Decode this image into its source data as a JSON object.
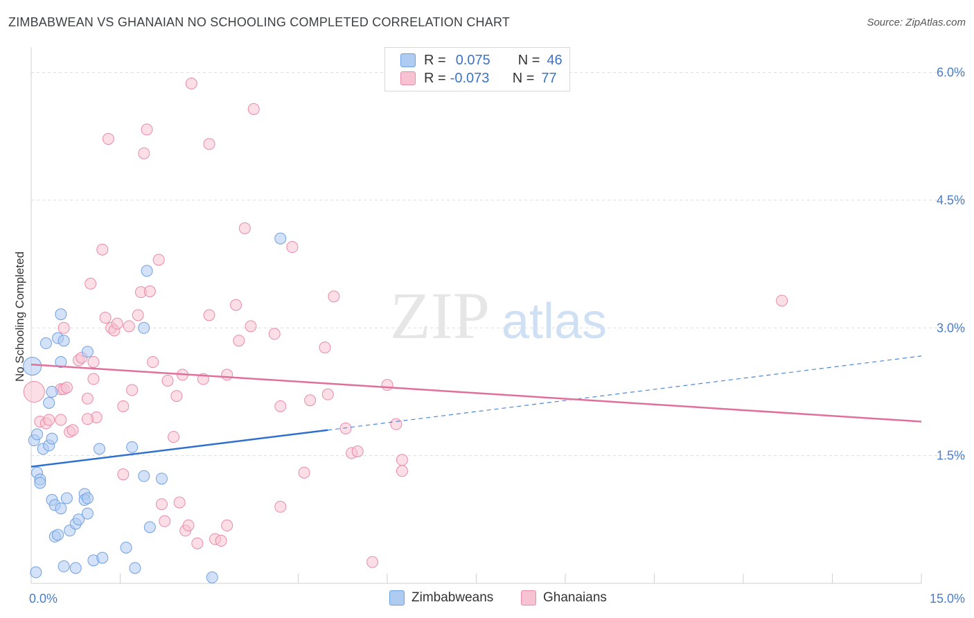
{
  "title": "ZIMBABWEAN VS GHANAIAN NO SCHOOLING COMPLETED CORRELATION CHART",
  "source": "Source: ZipAtlas.com",
  "watermark": {
    "zip": "ZIP",
    "atlas": "atlas"
  },
  "legend": {
    "r_label": "R =",
    "n_label": "N =",
    "rows": [
      {
        "r": "0.075",
        "n": "46",
        "fill": "#aecbf2",
        "stroke": "#6f9fe0"
      },
      {
        "r": "-0.073",
        "n": "77",
        "fill": "#f7c3d2",
        "stroke": "#e88aa8"
      }
    ]
  },
  "bottom_legend": [
    "Zimbabweans",
    "Ghanaians"
  ],
  "chart_data": {
    "type": "scatter",
    "xlabel": "",
    "ylabel": "No Schooling Completed",
    "xlim": [
      0,
      15
    ],
    "ylim": [
      0,
      6.2
    ],
    "x_tick_labels": [
      "0.0%",
      "15.0%"
    ],
    "y_ticks": [
      1.5,
      3.0,
      4.5,
      6.0
    ],
    "y_tick_labels": [
      "1.5%",
      "3.0%",
      "4.5%",
      "6.0%"
    ],
    "grid": true,
    "series": [
      {
        "name": "Zimbabweans",
        "color": "#6f9fe0",
        "fill": "#aecbf2",
        "trend": {
          "x": [
            0,
            5.0
          ],
          "y": [
            1.37,
            1.8
          ],
          "dash_to_x": 15,
          "dash_to_y": 2.67
        },
        "points": [
          [
            0.02,
            2.55
          ],
          [
            0.25,
            2.82
          ],
          [
            0.35,
            2.25
          ],
          [
            0.3,
            2.12
          ],
          [
            0.45,
            2.88
          ],
          [
            0.5,
            3.16
          ],
          [
            0.55,
            2.85
          ],
          [
            0.95,
            2.72
          ],
          [
            0.05,
            1.68
          ],
          [
            0.1,
            1.75
          ],
          [
            0.2,
            1.58
          ],
          [
            0.3,
            1.62
          ],
          [
            0.35,
            1.7
          ],
          [
            0.1,
            1.3
          ],
          [
            0.15,
            1.22
          ],
          [
            0.15,
            1.18
          ],
          [
            0.35,
            0.98
          ],
          [
            0.4,
            0.92
          ],
          [
            0.5,
            0.88
          ],
          [
            0.6,
            1.0
          ],
          [
            0.9,
            1.05
          ],
          [
            0.9,
            0.98
          ],
          [
            0.95,
            1.0
          ],
          [
            0.65,
            0.62
          ],
          [
            0.75,
            0.7
          ],
          [
            0.8,
            0.75
          ],
          [
            0.95,
            0.82
          ],
          [
            0.4,
            0.55
          ],
          [
            0.45,
            0.57
          ],
          [
            1.15,
            1.58
          ],
          [
            1.7,
            1.6
          ],
          [
            1.9,
            3.0
          ],
          [
            1.95,
            3.67
          ],
          [
            1.9,
            1.26
          ],
          [
            2.2,
            1.23
          ],
          [
            2.0,
            0.66
          ],
          [
            1.6,
            0.42
          ],
          [
            1.05,
            0.27
          ],
          [
            1.2,
            0.3
          ],
          [
            0.55,
            0.2
          ],
          [
            0.75,
            0.18
          ],
          [
            1.75,
            0.18
          ],
          [
            3.05,
            0.07
          ],
          [
            4.2,
            4.05
          ],
          [
            0.08,
            0.13
          ],
          [
            0.5,
            2.6
          ]
        ]
      },
      {
        "name": "Ghanaians",
        "color": "#e88aa8",
        "fill": "#f7c3d2",
        "trend": {
          "x": [
            0,
            15
          ],
          "y": [
            2.57,
            1.9
          ]
        },
        "points": [
          [
            0.05,
            2.25
          ],
          [
            0.15,
            1.9
          ],
          [
            0.25,
            1.88
          ],
          [
            0.3,
            1.92
          ],
          [
            0.5,
            2.28
          ],
          [
            0.55,
            2.28
          ],
          [
            0.6,
            2.3
          ],
          [
            0.55,
            3.0
          ],
          [
            0.5,
            1.92
          ],
          [
            0.65,
            1.78
          ],
          [
            0.7,
            1.8
          ],
          [
            0.8,
            2.62
          ],
          [
            0.85,
            2.65
          ],
          [
            0.95,
            2.17
          ],
          [
            1.05,
            2.4
          ],
          [
            1.1,
            1.95
          ],
          [
            0.95,
            1.93
          ],
          [
            1.0,
            3.52
          ],
          [
            1.2,
            3.92
          ],
          [
            1.25,
            3.12
          ],
          [
            1.35,
            3.0
          ],
          [
            1.4,
            2.97
          ],
          [
            1.45,
            3.05
          ],
          [
            1.3,
            5.22
          ],
          [
            1.55,
            2.08
          ],
          [
            1.65,
            3.02
          ],
          [
            1.7,
            2.27
          ],
          [
            1.8,
            3.15
          ],
          [
            1.85,
            3.42
          ],
          [
            2.0,
            3.43
          ],
          [
            2.05,
            2.6
          ],
          [
            1.9,
            5.05
          ],
          [
            1.95,
            5.33
          ],
          [
            2.15,
            3.8
          ],
          [
            2.3,
            2.38
          ],
          [
            2.4,
            1.72
          ],
          [
            2.45,
            2.2
          ],
          [
            2.55,
            2.45
          ],
          [
            2.2,
            0.93
          ],
          [
            2.25,
            0.73
          ],
          [
            2.5,
            0.95
          ],
          [
            2.6,
            0.62
          ],
          [
            2.65,
            0.68
          ],
          [
            2.8,
            0.47
          ],
          [
            2.7,
            5.87
          ],
          [
            2.9,
            2.4
          ],
          [
            3.0,
            5.16
          ],
          [
            3.0,
            3.15
          ],
          [
            3.1,
            0.52
          ],
          [
            3.2,
            0.5
          ],
          [
            3.3,
            0.68
          ],
          [
            3.3,
            2.45
          ],
          [
            3.45,
            3.27
          ],
          [
            3.5,
            2.85
          ],
          [
            3.6,
            4.17
          ],
          [
            3.7,
            3.02
          ],
          [
            3.75,
            5.57
          ],
          [
            4.1,
            2.93
          ],
          [
            4.2,
            2.08
          ],
          [
            4.2,
            0.9
          ],
          [
            4.4,
            3.95
          ],
          [
            4.6,
            1.3
          ],
          [
            4.7,
            2.15
          ],
          [
            4.95,
            2.77
          ],
          [
            5.0,
            2.22
          ],
          [
            5.1,
            3.37
          ],
          [
            5.3,
            1.82
          ],
          [
            5.4,
            1.53
          ],
          [
            5.5,
            1.55
          ],
          [
            5.75,
            0.25
          ],
          [
            6.0,
            2.33
          ],
          [
            6.15,
            1.87
          ],
          [
            6.25,
            1.45
          ],
          [
            6.25,
            1.32
          ],
          [
            12.65,
            3.32
          ],
          [
            1.55,
            1.28
          ],
          [
            1.05,
            2.6
          ]
        ]
      }
    ]
  }
}
